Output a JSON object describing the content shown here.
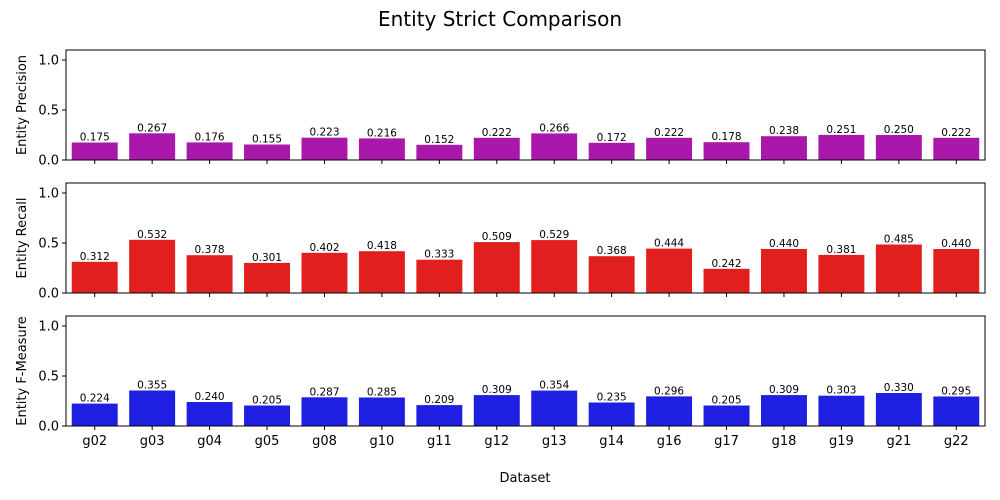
{
  "figure": {
    "title": "Entity Strict Comparison",
    "xlabel": "Dataset"
  },
  "chart_data": [
    {
      "type": "bar",
      "ylabel": "Entity Precision",
      "categories": [
        "g02",
        "g03",
        "g04",
        "g05",
        "g08",
        "g10",
        "g11",
        "g12",
        "g13",
        "g14",
        "g16",
        "g17",
        "g18",
        "g19",
        "g21",
        "g22"
      ],
      "values": [
        0.175,
        0.267,
        0.176,
        0.155,
        0.223,
        0.216,
        0.152,
        0.222,
        0.266,
        0.172,
        0.222,
        0.178,
        0.238,
        0.251,
        0.25,
        0.222
      ],
      "labels": [
        "0.175",
        "0.267",
        "0.176",
        "0.155",
        "0.223",
        "0.216",
        "0.152",
        "0.222",
        "0.266",
        "0.172",
        "0.222",
        "0.178",
        "0.238",
        "0.251",
        "0.250",
        "0.222"
      ],
      "color": "#a918aa",
      "ylim": [
        0,
        1.1
      ],
      "yticks": [
        "0.0",
        "0.5",
        "1.0"
      ],
      "show_xticklabels": false
    },
    {
      "type": "bar",
      "ylabel": "Entity Recall",
      "categories": [
        "g02",
        "g03",
        "g04",
        "g05",
        "g08",
        "g10",
        "g11",
        "g12",
        "g13",
        "g14",
        "g16",
        "g17",
        "g18",
        "g19",
        "g21",
        "g22"
      ],
      "values": [
        0.312,
        0.532,
        0.378,
        0.301,
        0.402,
        0.418,
        0.333,
        0.509,
        0.529,
        0.368,
        0.444,
        0.242,
        0.44,
        0.381,
        0.485,
        0.44
      ],
      "labels": [
        "0.312",
        "0.532",
        "0.378",
        "0.301",
        "0.402",
        "0.418",
        "0.333",
        "0.509",
        "0.529",
        "0.368",
        "0.444",
        "0.242",
        "0.440",
        "0.381",
        "0.485",
        "0.440"
      ],
      "color": "#e21f1f",
      "ylim": [
        0,
        1.1
      ],
      "yticks": [
        "0.0",
        "0.5",
        "1.0"
      ],
      "show_xticklabels": false
    },
    {
      "type": "bar",
      "ylabel": "Entity F-Measure",
      "categories": [
        "g02",
        "g03",
        "g04",
        "g05",
        "g08",
        "g10",
        "g11",
        "g12",
        "g13",
        "g14",
        "g16",
        "g17",
        "g18",
        "g19",
        "g21",
        "g22"
      ],
      "values": [
        0.224,
        0.355,
        0.24,
        0.205,
        0.287,
        0.285,
        0.209,
        0.309,
        0.354,
        0.235,
        0.296,
        0.205,
        0.309,
        0.303,
        0.33,
        0.295
      ],
      "labels": [
        "0.224",
        "0.355",
        "0.240",
        "0.205",
        "0.287",
        "0.285",
        "0.209",
        "0.309",
        "0.354",
        "0.235",
        "0.296",
        "0.205",
        "0.309",
        "0.303",
        "0.330",
        "0.295"
      ],
      "color": "#1f1fe2",
      "ylim": [
        0,
        1.1
      ],
      "yticks": [
        "0.0",
        "0.5",
        "1.0"
      ],
      "show_xticklabels": true
    }
  ]
}
